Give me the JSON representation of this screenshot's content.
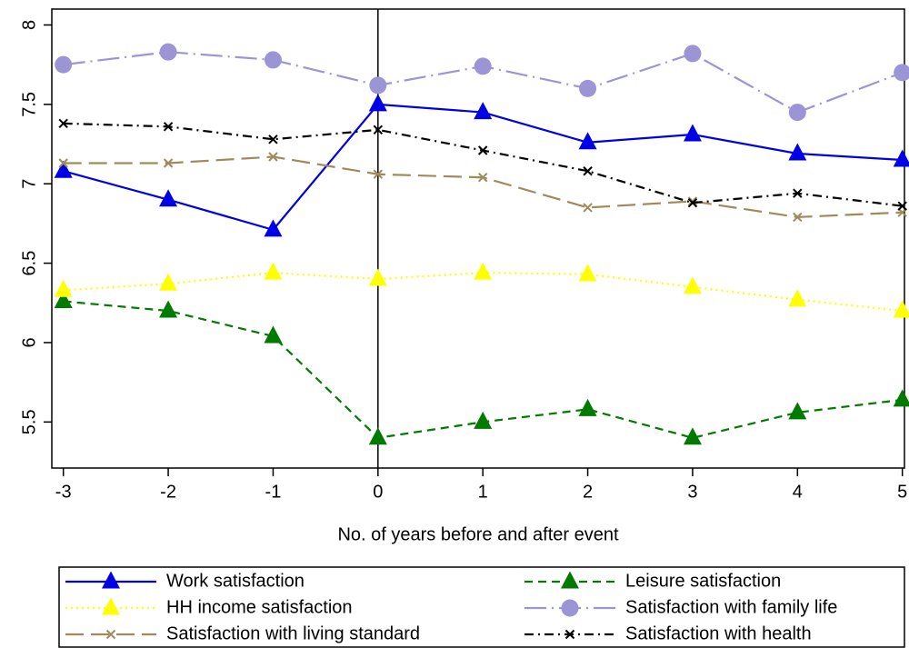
{
  "chart_data": {
    "type": "line",
    "x_label": "No. of years before and after event",
    "x": [
      -3,
      -2,
      -1,
      0,
      1,
      2,
      3,
      4,
      5
    ],
    "xlim": [
      -3.11,
      5.02
    ],
    "xticks": [
      -3,
      -2,
      -1,
      0,
      1,
      2,
      3,
      4,
      5
    ],
    "ylim": [
      5.21,
      8.1
    ],
    "yticks": [
      5.5,
      6,
      6.5,
      7,
      7.5,
      8
    ],
    "vline": 0,
    "series": [
      {
        "name": "Work satisfaction",
        "color": "#0000e6",
        "marker": "triangle",
        "dash": "solid",
        "values": [
          7.08,
          6.9,
          6.71,
          7.5,
          7.45,
          7.26,
          7.31,
          7.19,
          7.15
        ]
      },
      {
        "name": "Leisure satisfaction",
        "color": "#007a00",
        "marker": "triangle",
        "dash": "dashed",
        "values": [
          6.26,
          6.2,
          6.04,
          5.4,
          5.5,
          5.58,
          5.4,
          5.56,
          5.64
        ]
      },
      {
        "name": "HH income satisfaction",
        "color": "#ffff00",
        "marker": "triangle",
        "dash": "dotted",
        "values": [
          6.33,
          6.37,
          6.44,
          6.4,
          6.44,
          6.43,
          6.35,
          6.27,
          6.2
        ]
      },
      {
        "name": "Satisfaction with family life",
        "color": "#9b95d6",
        "marker": "circle",
        "dash": "longdashdot",
        "values": [
          7.75,
          7.83,
          7.78,
          7.62,
          7.74,
          7.6,
          7.82,
          7.45,
          7.7
        ]
      },
      {
        "name": "Satisfaction with living standard",
        "color": "#a08a5c",
        "marker": "x",
        "dash": "longdash",
        "values": [
          7.13,
          7.13,
          7.17,
          7.06,
          7.04,
          6.85,
          6.89,
          6.79,
          6.82
        ]
      },
      {
        "name": "Satisfaction with health",
        "color": "#000000",
        "marker": "x",
        "dash": "dashdot",
        "values": [
          7.38,
          7.36,
          7.28,
          7.34,
          7.21,
          7.08,
          6.88,
          6.94,
          6.86
        ]
      }
    ]
  }
}
